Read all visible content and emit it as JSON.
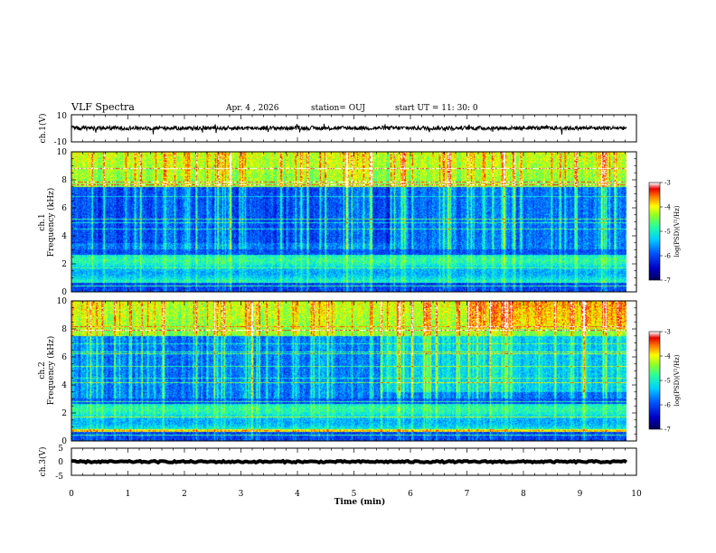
{
  "chart_data": {
    "type": "heatmap",
    "title": "VLF Spectra",
    "date": "Apr. 4 , 2026",
    "station": "station= OUJ",
    "start_ut": "start UT = 11: 30: 0",
    "xlabel": "Time (min)",
    "xlim": [
      0,
      10
    ],
    "x_ticks": [
      "0",
      "1",
      "2",
      "3",
      "4",
      "5",
      "6",
      "7",
      "8",
      "9",
      "10"
    ],
    "panels": [
      {
        "kind": "waveform",
        "ylabel": "ch.1(V)",
        "ylim": [
          -10,
          10
        ],
        "y_ticks": [
          "10",
          "-10"
        ],
        "baseline": 0.2,
        "noise_amplitude": 1.5
      },
      {
        "kind": "spectrogram",
        "ylabel_lines": [
          "ch.1",
          "Frequency (kHz)"
        ],
        "ylim": [
          0,
          10
        ],
        "y_ticks": [
          "0",
          "2",
          "4",
          "6",
          "8",
          "10"
        ],
        "colorbar": {
          "label": "log(PSD)(V²/Hz)",
          "range": [
            -7,
            -3
          ],
          "ticks": [
            "-3",
            "-4",
            "-5",
            "-6",
            "-7"
          ]
        }
      },
      {
        "kind": "spectrogram",
        "ylabel_lines": [
          "ch.2",
          "Frequency (kHz)"
        ],
        "ylim": [
          0,
          10
        ],
        "y_ticks": [
          "0",
          "2",
          "4",
          "6",
          "8",
          "10"
        ],
        "colorbar": {
          "label": "log(PSD)(V²/Hz)",
          "range": [
            -7,
            -3
          ],
          "ticks": [
            "-3",
            "-4",
            "-5",
            "-6",
            "-7"
          ]
        }
      },
      {
        "kind": "waveform",
        "ylabel": "ch.3(V)",
        "ylim": [
          -5,
          5
        ],
        "y_ticks": [
          "5",
          "0",
          "-5"
        ],
        "baseline": 0,
        "noise_amplitude": 0.3
      }
    ],
    "data_end_min": 9.83
  }
}
